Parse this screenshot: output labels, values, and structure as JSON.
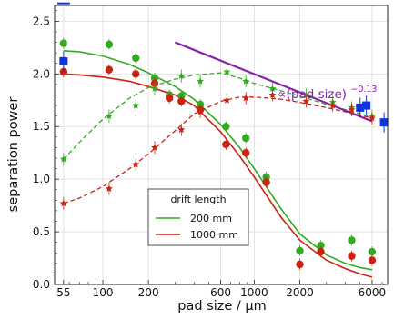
{
  "chart_data": {
    "type": "line",
    "xlabel": "pad size / μm",
    "ylabel": "separation power",
    "x_scale": "log",
    "xlim": [
      48,
      7600
    ],
    "ylim": [
      0,
      2.65
    ],
    "x_ticks": [
      {
        "value": 55,
        "label": "55"
      },
      {
        "value": 100,
        "label": "100"
      },
      {
        "value": 200,
        "label": "200"
      },
      {
        "value": 600,
        "label": "600"
      },
      {
        "value": 1000,
        "label": "1000"
      },
      {
        "value": 2000,
        "label": "2000"
      },
      {
        "value": 6000,
        "label": "6000"
      }
    ],
    "y_ticks": [
      {
        "value": 0.0,
        "label": "0.0"
      },
      {
        "value": 0.5,
        "label": "0.5"
      },
      {
        "value": 1.0,
        "label": "1.0"
      },
      {
        "value": 1.5,
        "label": "1.5"
      },
      {
        "value": 2.0,
        "label": "2.0"
      },
      {
        "value": 2.5,
        "label": "2.5"
      }
    ],
    "grid": true,
    "legend": {
      "title": "drift length",
      "placement": "lower-center",
      "entries": [
        {
          "label": "200 mm",
          "color": "#33aa22"
        },
        {
          "label": "1000 mm",
          "color": "#cc2211"
        }
      ]
    },
    "annotation": {
      "text": "∝(pad size)",
      "exponent": "−0.13",
      "color": "#8822aa"
    },
    "series": [
      {
        "name": "200 mm",
        "kind": "solid-curve",
        "color": "#33aa22",
        "x": [
          55,
          70,
          100,
          150,
          200,
          300,
          400,
          600,
          800,
          1000,
          1500,
          2000,
          3000,
          4000,
          5000,
          6000
        ],
        "y": [
          2.22,
          2.21,
          2.17,
          2.09,
          2.01,
          1.88,
          1.76,
          1.52,
          1.3,
          1.1,
          0.72,
          0.48,
          0.28,
          0.2,
          0.16,
          0.14
        ]
      },
      {
        "name": "1000 mm",
        "kind": "solid-curve",
        "color": "#cc2211",
        "x": [
          55,
          70,
          100,
          150,
          200,
          300,
          400,
          600,
          800,
          1000,
          1500,
          2000,
          3000,
          4000,
          5000,
          6000
        ],
        "y": [
          2.0,
          1.99,
          1.97,
          1.93,
          1.88,
          1.8,
          1.7,
          1.45,
          1.22,
          1.02,
          0.64,
          0.42,
          0.23,
          0.15,
          0.1,
          0.07
        ]
      },
      {
        "name": "200 mm",
        "kind": "dashed-curve",
        "color": "#33aa22",
        "x": [
          55,
          70,
          100,
          150,
          200,
          300,
          400,
          600,
          800,
          1000,
          1500,
          2000,
          3000,
          4000,
          6000
        ],
        "y": [
          1.19,
          1.35,
          1.57,
          1.77,
          1.87,
          1.95,
          1.99,
          2.01,
          1.96,
          1.91,
          1.84,
          1.79,
          1.71,
          1.66,
          1.59
        ]
      },
      {
        "name": "1000 mm",
        "kind": "dashed-curve",
        "color": "#cc2211",
        "x": [
          55,
          70,
          100,
          150,
          200,
          300,
          400,
          600,
          800,
          1000,
          1500,
          2000,
          3000,
          4000,
          6000
        ],
        "y": [
          0.77,
          0.82,
          0.93,
          1.1,
          1.24,
          1.46,
          1.62,
          1.74,
          1.78,
          1.78,
          1.76,
          1.73,
          1.68,
          1.64,
          1.58
        ]
      },
      {
        "name": "200 mm",
        "kind": "dots",
        "color": "#33aa22",
        "x": [
          55,
          110,
          165,
          220,
          275,
          330,
          440,
          650,
          880,
          1200,
          2000,
          2750,
          4400,
          6000
        ],
        "y": [
          2.29,
          2.28,
          2.15,
          1.96,
          1.8,
          1.79,
          1.71,
          1.5,
          1.39,
          1.02,
          0.32,
          0.37,
          0.42,
          0.31
        ]
      },
      {
        "name": "1000 mm",
        "kind": "dots",
        "color": "#cc2211",
        "x": [
          55,
          110,
          165,
          220,
          275,
          330,
          440,
          650,
          880,
          1200,
          2000,
          2750,
          4400,
          6000
        ],
        "y": [
          2.02,
          2.04,
          2.0,
          1.91,
          1.77,
          1.74,
          1.66,
          1.33,
          1.25,
          0.97,
          0.19,
          0.31,
          0.27,
          0.23
        ]
      },
      {
        "name": "200 mm",
        "kind": "stars",
        "color": "#33aa22",
        "x": [
          55,
          110,
          165,
          220,
          330,
          440,
          660,
          880,
          1320,
          2200,
          3300,
          4400,
          6000
        ],
        "y": [
          1.19,
          1.6,
          1.7,
          1.86,
          1.98,
          1.93,
          2.02,
          1.93,
          1.86,
          1.8,
          1.73,
          1.68,
          1.6
        ]
      },
      {
        "name": "1000 mm",
        "kind": "stars",
        "color": "#cc2211",
        "x": [
          55,
          110,
          165,
          220,
          330,
          440,
          660,
          880,
          1320,
          2200,
          3300,
          4400,
          6000
        ],
        "y": [
          0.77,
          0.91,
          1.14,
          1.3,
          1.47,
          1.64,
          1.75,
          1.77,
          1.8,
          1.74,
          1.7,
          1.66,
          1.58
        ]
      },
      {
        "name": "",
        "kind": "blue-squares",
        "color": "#1133dd",
        "x": [
          55,
          5000,
          5500,
          7200
        ],
        "y": [
          2.12,
          1.68,
          1.7,
          1.54
        ]
      },
      {
        "name": "",
        "kind": "fit-line",
        "color": "#8822aa",
        "x": [
          300,
          6000
        ],
        "y": [
          2.3,
          1.55
        ]
      }
    ],
    "marker_above_axes": {
      "x": 50,
      "y": 2.67,
      "color": "#1133dd"
    }
  }
}
